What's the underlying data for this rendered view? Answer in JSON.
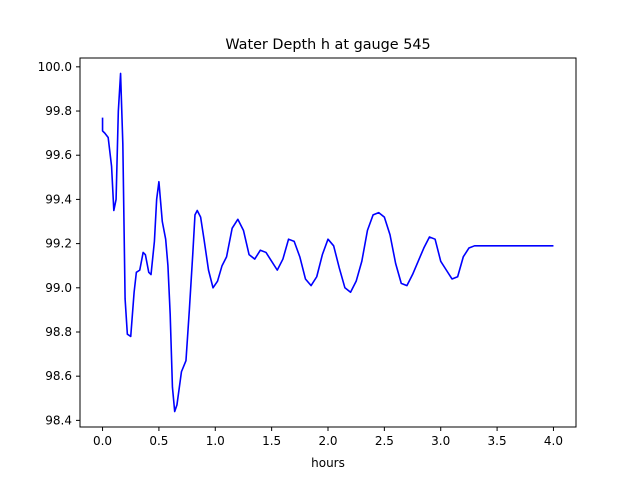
{
  "chart_data": {
    "type": "line",
    "title": "Water Depth h at gauge 545",
    "xlabel": "hours",
    "ylabel": "",
    "xlim": [
      -0.2,
      4.2
    ],
    "ylim": [
      98.37,
      100.04
    ],
    "xticks": [
      0.0,
      0.5,
      1.0,
      1.5,
      2.0,
      2.5,
      3.0,
      3.5,
      4.0
    ],
    "xtick_labels": [
      "0.0",
      "0.5",
      "1.0",
      "1.5",
      "2.0",
      "2.5",
      "3.0",
      "3.5",
      "4.0"
    ],
    "yticks": [
      98.4,
      98.6,
      98.8,
      99.0,
      99.2,
      99.4,
      99.6,
      99.8,
      100.0
    ],
    "ytick_labels": [
      "98.4",
      "98.6",
      "98.8",
      "99.0",
      "99.2",
      "99.4",
      "99.6",
      "99.8",
      "100.0"
    ],
    "grid": false,
    "series": [
      {
        "color": "#0000ff",
        "x": [
          0.0,
          0.0,
          0.02,
          0.05,
          0.08,
          0.1,
          0.12,
          0.14,
          0.16,
          0.18,
          0.2,
          0.22,
          0.25,
          0.28,
          0.3,
          0.33,
          0.36,
          0.38,
          0.41,
          0.43,
          0.46,
          0.48,
          0.5,
          0.53,
          0.56,
          0.58,
          0.6,
          0.62,
          0.64,
          0.66,
          0.7,
          0.74,
          0.77,
          0.8,
          0.82,
          0.84,
          0.87,
          0.9,
          0.94,
          0.98,
          1.02,
          1.06,
          1.1,
          1.15,
          1.2,
          1.25,
          1.3,
          1.35,
          1.4,
          1.45,
          1.5,
          1.55,
          1.6,
          1.65,
          1.7,
          1.75,
          1.8,
          1.85,
          1.9,
          1.95,
          2.0,
          2.05,
          2.1,
          2.15,
          2.2,
          2.25,
          2.3,
          2.35,
          2.4,
          2.45,
          2.5,
          2.55,
          2.6,
          2.65,
          2.7,
          2.75,
          2.8,
          2.85,
          2.9,
          2.95,
          3.0,
          3.05,
          3.1,
          3.15,
          3.2,
          3.25,
          3.3,
          3.35,
          3.4,
          3.45,
          3.5,
          3.55,
          3.6,
          3.65,
          3.7,
          3.75,
          3.8,
          3.85,
          3.9,
          3.95,
          4.0
        ],
        "y": [
          99.77,
          99.71,
          99.7,
          99.68,
          99.55,
          99.35,
          99.4,
          99.8,
          99.97,
          99.65,
          98.95,
          98.79,
          98.78,
          98.98,
          99.07,
          99.08,
          99.16,
          99.15,
          99.07,
          99.06,
          99.21,
          99.4,
          99.48,
          99.3,
          99.22,
          99.1,
          98.88,
          98.55,
          98.44,
          98.47,
          98.62,
          98.67,
          98.9,
          99.15,
          99.33,
          99.35,
          99.32,
          99.22,
          99.08,
          99.0,
          99.03,
          99.1,
          99.14,
          99.27,
          99.31,
          99.26,
          99.15,
          99.13,
          99.17,
          99.16,
          99.12,
          99.08,
          99.13,
          99.22,
          99.21,
          99.14,
          99.04,
          99.01,
          99.05,
          99.15,
          99.22,
          99.19,
          99.09,
          99.0,
          98.98,
          99.03,
          99.12,
          99.26,
          99.33,
          99.34,
          99.32,
          99.24,
          99.11,
          99.02,
          99.01,
          99.06,
          99.12,
          99.18,
          99.23,
          99.22,
          99.12,
          99.08,
          99.04,
          99.05,
          99.14,
          99.18,
          99.19,
          99.19,
          99.19,
          99.19,
          99.19,
          99.19,
          99.19,
          99.19,
          99.19,
          99.19,
          99.19,
          99.19,
          99.19,
          99.19,
          99.19
        ]
      }
    ]
  }
}
